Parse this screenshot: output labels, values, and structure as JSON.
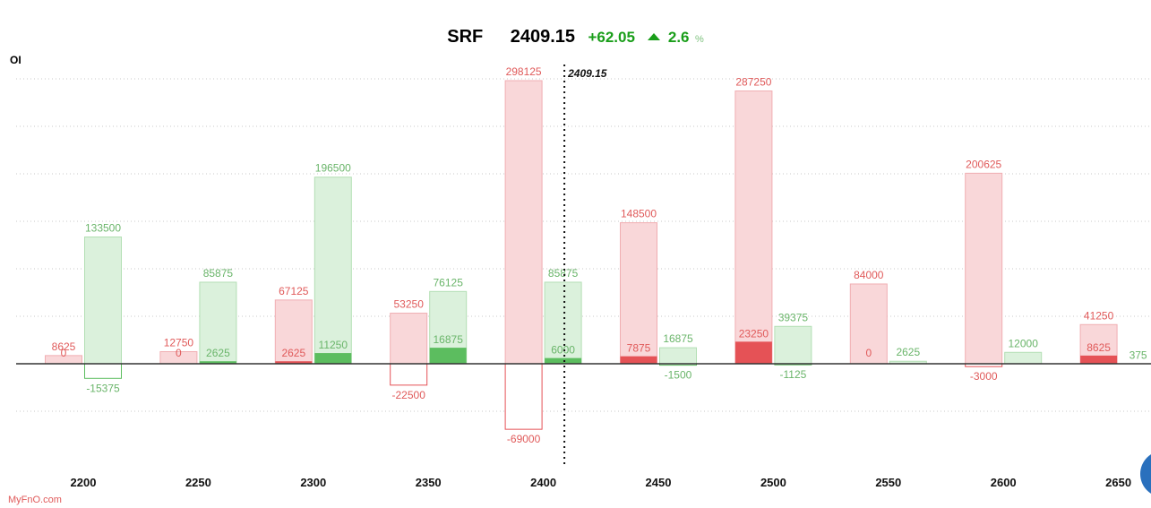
{
  "header": {
    "symbol": "SRF",
    "price": "2409.15",
    "change": "+62.05",
    "change_pct": "2.6",
    "pct_sign": "%",
    "trend_icon": "triangle-up-icon"
  },
  "watermark": "MyFnO.com",
  "colors": {
    "call_oi": "#f9d7d9",
    "call_oi_stroke": "#f0aeb2",
    "call_chg": "#e55256",
    "call_text": "#e05a5a",
    "put_oi": "#dbf1dc",
    "put_oi_stroke": "#b3dfb4",
    "put_chg": "#5cbd5f",
    "put_text": "#6ab56a",
    "positive_change": "#1a9e1a"
  },
  "chart_data": {
    "type": "bar",
    "ylabel": "OI",
    "xlabel": "",
    "categories": [
      "2200",
      "2250",
      "2300",
      "2350",
      "2400",
      "2450",
      "2500",
      "2550",
      "2600",
      "2650"
    ],
    "series": [
      {
        "values": [
          8625,
          12750,
          67125,
          53250,
          298125,
          148500,
          287250,
          84000,
          200625,
          41250
        ]
      },
      {
        "values": [
          0,
          0,
          2625,
          -22500,
          -69000,
          7875,
          23250,
          0,
          -3000,
          8625
        ]
      },
      {
        "values": [
          133500,
          85875,
          196500,
          76125,
          85875,
          16875,
          39375,
          2625,
          12000,
          null
        ]
      },
      {
        "values": [
          -15375,
          2625,
          11250,
          16875,
          6000,
          -1500,
          -1125,
          null,
          null,
          375
        ]
      }
    ],
    "ylim": [
      -107000,
      336000
    ],
    "grid": true,
    "spot_marker": {
      "value": 2409.15,
      "label": "2409.15"
    }
  }
}
